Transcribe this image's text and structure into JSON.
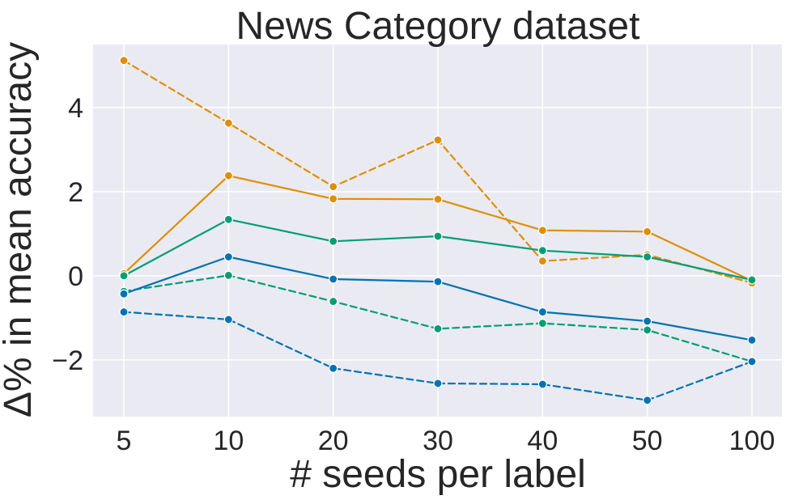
{
  "chart_data": {
    "type": "line",
    "title": "News Category dataset",
    "xlabel": "# seeds per label",
    "ylabel": "Δ% in mean accuracy",
    "categories": [
      "5",
      "10",
      "20",
      "30",
      "40",
      "50",
      "100"
    ],
    "yticks": [
      -2,
      0,
      2,
      4
    ],
    "ytick_labels": [
      "−2",
      "0",
      "2",
      "4"
    ],
    "ylim": [
      -3.35,
      5.5
    ],
    "grid": true,
    "background": "#eaeaf2",
    "series": [
      {
        "color": "#de8f05",
        "dash": false,
        "values": [
          0.05,
          2.38,
          1.83,
          1.82,
          1.08,
          1.05,
          -0.12
        ]
      },
      {
        "color": "#de8f05",
        "dash": true,
        "values": [
          5.12,
          3.63,
          2.12,
          3.23,
          0.35,
          0.5,
          -0.17
        ]
      },
      {
        "color": "#029e73",
        "dash": false,
        "values": [
          0.0,
          1.34,
          0.82,
          0.94,
          0.6,
          0.45,
          -0.1
        ]
      },
      {
        "color": "#029e73",
        "dash": true,
        "values": [
          -0.37,
          0.01,
          -0.61,
          -1.26,
          -1.13,
          -1.29,
          -2.04
        ]
      },
      {
        "color": "#0173b2",
        "dash": false,
        "values": [
          -0.43,
          0.45,
          -0.08,
          -0.14,
          -0.86,
          -1.08,
          -1.53
        ]
      },
      {
        "color": "#0173b2",
        "dash": true,
        "values": [
          -0.86,
          -1.04,
          -2.2,
          -2.56,
          -2.58,
          -2.96,
          -2.04
        ]
      }
    ]
  }
}
